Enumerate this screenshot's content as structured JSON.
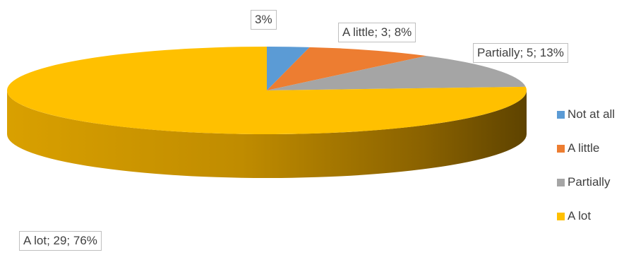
{
  "chart_data": {
    "type": "pie",
    "categories": [
      "Not at all",
      "A little",
      "Partially",
      "A lot"
    ],
    "values": [
      1,
      3,
      5,
      29
    ],
    "percentages": [
      3,
      8,
      13,
      76
    ],
    "colors": [
      "#5b9bd5",
      "#ed7d31",
      "#a5a5a5",
      "#ffc000"
    ],
    "data_labels": [
      "3%",
      "A little; 3; 8%",
      "Partially; 5; 13%",
      "A lot; 29; 76%"
    ],
    "legend_position": "right",
    "style": "3d"
  }
}
